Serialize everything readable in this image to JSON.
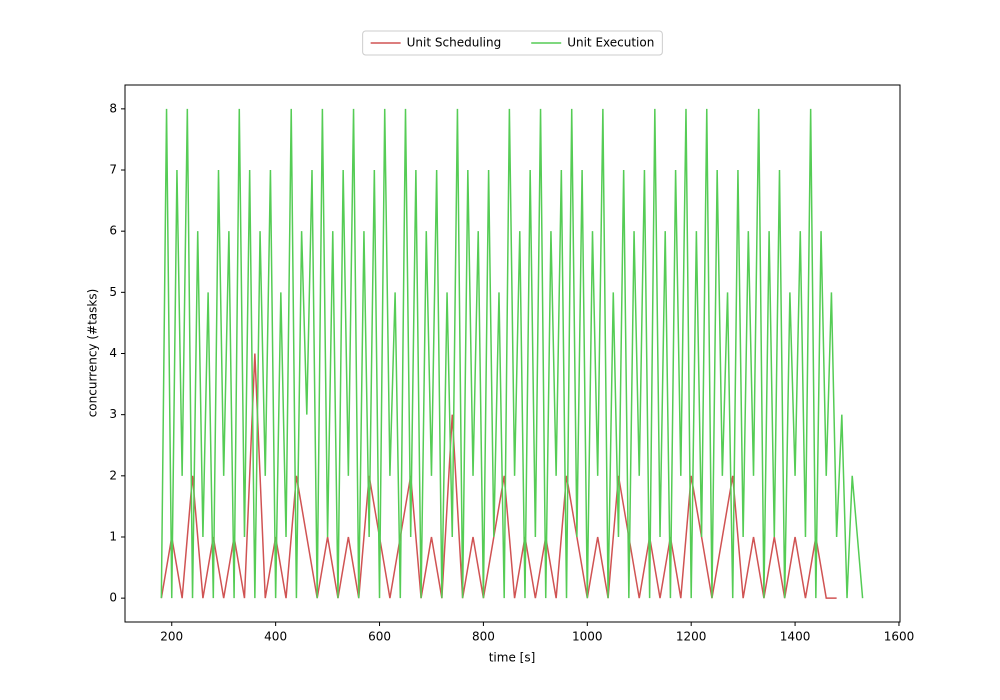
{
  "chart_data": {
    "type": "line",
    "xlabel": "time [s]",
    "ylabel": "concurrency (#tasks)",
    "xlim": [
      110,
      1602
    ],
    "ylim": [
      -0.39,
      8.39
    ],
    "xticks": [
      200,
      400,
      600,
      800,
      1000,
      1200,
      1400,
      1600
    ],
    "yticks": [
      0,
      1,
      2,
      3,
      4,
      5,
      6,
      7,
      8
    ],
    "grid": false,
    "legend": "upper center",
    "series": [
      {
        "name": "Unit Scheduling",
        "color": "#d05353",
        "x": [
          180,
          200,
          220,
          240,
          260,
          280,
          300,
          320,
          340,
          360,
          380,
          400,
          420,
          440,
          460,
          480,
          500,
          520,
          540,
          560,
          580,
          600,
          620,
          640,
          660,
          680,
          700,
          720,
          740,
          760,
          780,
          800,
          820,
          840,
          860,
          880,
          900,
          920,
          940,
          960,
          980,
          1000,
          1020,
          1040,
          1060,
          1080,
          1100,
          1120,
          1140,
          1160,
          1180,
          1200,
          1220,
          1240,
          1260,
          1280,
          1300,
          1320,
          1340,
          1360,
          1380,
          1400,
          1420,
          1440,
          1460,
          1480
        ],
        "values": [
          0,
          1,
          0,
          2,
          0,
          1,
          0,
          1,
          0,
          4,
          0,
          1,
          0,
          2,
          1,
          0,
          1,
          0,
          1,
          0,
          2,
          1,
          0,
          1,
          2,
          0,
          1,
          0,
          3,
          0,
          1,
          0,
          1,
          2,
          0,
          1,
          0,
          1,
          0,
          2,
          1,
          0,
          1,
          0,
          2,
          1,
          0,
          1,
          0,
          1,
          0,
          2,
          1,
          0,
          1,
          2,
          0,
          1,
          0,
          1,
          0,
          1,
          0,
          1,
          0,
          0
        ]
      },
      {
        "name": "Unit Execution",
        "color": "#55cc55",
        "x": [
          180,
          190,
          200,
          210,
          220,
          230,
          240,
          250,
          260,
          270,
          280,
          290,
          300,
          310,
          320,
          330,
          340,
          350,
          360,
          370,
          380,
          390,
          400,
          410,
          420,
          430,
          440,
          450,
          460,
          470,
          480,
          490,
          500,
          510,
          520,
          530,
          540,
          550,
          560,
          570,
          580,
          590,
          600,
          610,
          620,
          630,
          640,
          650,
          660,
          670,
          680,
          690,
          700,
          710,
          720,
          730,
          740,
          750,
          760,
          770,
          780,
          790,
          800,
          810,
          820,
          830,
          840,
          850,
          860,
          870,
          880,
          890,
          900,
          910,
          920,
          930,
          940,
          950,
          960,
          970,
          980,
          990,
          1000,
          1010,
          1020,
          1030,
          1040,
          1050,
          1060,
          1070,
          1080,
          1090,
          1100,
          1110,
          1120,
          1130,
          1140,
          1150,
          1160,
          1170,
          1180,
          1190,
          1200,
          1210,
          1220,
          1230,
          1240,
          1250,
          1260,
          1270,
          1280,
          1290,
          1300,
          1310,
          1320,
          1330,
          1340,
          1350,
          1360,
          1370,
          1380,
          1390,
          1400,
          1410,
          1420,
          1430,
          1440,
          1450,
          1460,
          1470,
          1480,
          1490,
          1500,
          1510,
          1520,
          1530
        ],
        "values": [
          0,
          8,
          0,
          7,
          2,
          8,
          0,
          6,
          1,
          5,
          0,
          7,
          2,
          6,
          0,
          8,
          1,
          7,
          0,
          6,
          2,
          7,
          0,
          5,
          1,
          8,
          0,
          6,
          3,
          7,
          0,
          8,
          1,
          6,
          0,
          7,
          2,
          8,
          0,
          6,
          1,
          7,
          0,
          8,
          2,
          5,
          0,
          8,
          1,
          7,
          0,
          6,
          2,
          7,
          0,
          5,
          1,
          8,
          0,
          7,
          2,
          6,
          0,
          7,
          1,
          5,
          0,
          8,
          2,
          6,
          0,
          7,
          1,
          8,
          0,
          6,
          2,
          7,
          0,
          8,
          1,
          7,
          0,
          6,
          2,
          8,
          0,
          5,
          1,
          7,
          0,
          6,
          2,
          7,
          0,
          8,
          1,
          6,
          0,
          7,
          2,
          8,
          0,
          6,
          1,
          8,
          0,
          7,
          2,
          5,
          0,
          7,
          1,
          6,
          2,
          8,
          0,
          6,
          1,
          7,
          0,
          5,
          2,
          6,
          1,
          8,
          0,
          6,
          2,
          5,
          1,
          3,
          0,
          2,
          1,
          0
        ]
      }
    ]
  }
}
